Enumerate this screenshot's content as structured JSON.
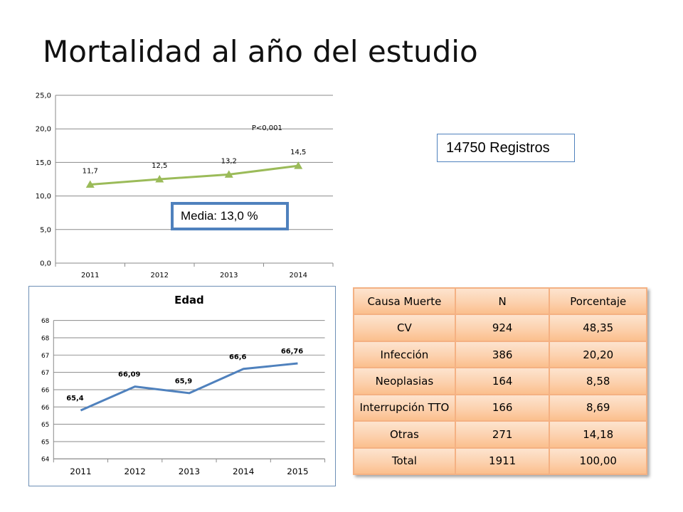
{
  "slide": {
    "title": "Mortalidad al año del estudio",
    "registros_label": "14750 Registros",
    "media_label": "Media: 13,0 %"
  },
  "chart_data": [
    {
      "type": "line",
      "title": "",
      "x": [
        "2011",
        "2012",
        "2013",
        "2014"
      ],
      "series": [
        {
          "values": [
            11.7,
            12.5,
            13.2,
            14.5
          ],
          "labels": [
            "11,7",
            "12,5",
            "13,2",
            "14,5"
          ]
        }
      ],
      "ylim": [
        0,
        25
      ],
      "yticks": [
        "0,0",
        "5,0",
        "10,0",
        "15,0",
        "20,0",
        "25,0"
      ],
      "ytick_values": [
        0,
        5,
        10,
        15,
        20,
        25
      ],
      "grid": true,
      "marker": "triangle",
      "color": "#9bbb59",
      "annotation": "P<0,001"
    },
    {
      "type": "line",
      "title": "Edad",
      "x": [
        "2011",
        "2012",
        "2013",
        "2014",
        "2015"
      ],
      "series": [
        {
          "values": [
            65.4,
            66.09,
            65.9,
            66.6,
            66.76
          ],
          "labels": [
            "65,4",
            "66,09",
            "65,9",
            "66,6",
            "66,76"
          ]
        }
      ],
      "ylim": [
        64,
        68
      ],
      "yticks": [
        "64",
        "65",
        "65",
        "66",
        "66",
        "67",
        "67",
        "68",
        "68"
      ],
      "ytick_values": [
        64,
        64.5,
        65,
        65.5,
        66,
        66.5,
        67,
        67.5,
        68
      ],
      "grid": true,
      "color": "#4f81bd"
    }
  ],
  "table": {
    "headers": [
      "Causa Muerte",
      "N",
      "Porcentaje"
    ],
    "rows": [
      [
        "CV",
        "924",
        "48,35"
      ],
      [
        "Infección",
        "386",
        "20,20"
      ],
      [
        "Neoplasias",
        "164",
        "8,58"
      ],
      [
        "Interrupción TTO",
        "166",
        "8,69"
      ],
      [
        "Otras",
        "271",
        "14,18"
      ],
      [
        "Total",
        "1911",
        "100,00"
      ]
    ],
    "border_color": "#f4b183",
    "fill_color": "#fcd5b4"
  }
}
